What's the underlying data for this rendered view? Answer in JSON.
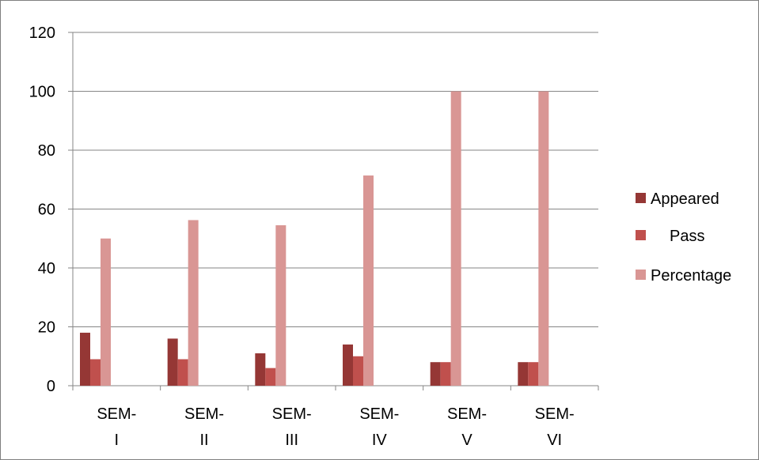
{
  "chart_data": {
    "type": "bar",
    "categories": [
      {
        "line1": "SEM-",
        "line2": "I"
      },
      {
        "line1": "SEM-",
        "line2": "II"
      },
      {
        "line1": "SEM-",
        "line2": "III"
      },
      {
        "line1": "SEM-",
        "line2": "IV"
      },
      {
        "line1": "SEM-",
        "line2": "V"
      },
      {
        "line1": "SEM-",
        "line2": "VI"
      }
    ],
    "series": [
      {
        "name": "Appeared",
        "color": "#953735",
        "values": [
          18,
          16,
          11,
          14,
          8,
          8
        ]
      },
      {
        "name": "Pass",
        "color": "#c0504d",
        "values": [
          9,
          9,
          6,
          10,
          8,
          8
        ]
      },
      {
        "name": "Percentage",
        "color": "#d99694",
        "values": [
          50,
          56.25,
          54.5,
          71.4,
          100,
          100
        ]
      }
    ],
    "ylim": [
      0,
      120
    ],
    "yticks": [
      0,
      20,
      40,
      60,
      80,
      100,
      120
    ],
    "grid": true,
    "legend_position": "right",
    "title": "",
    "xlabel": "",
    "ylabel": ""
  }
}
